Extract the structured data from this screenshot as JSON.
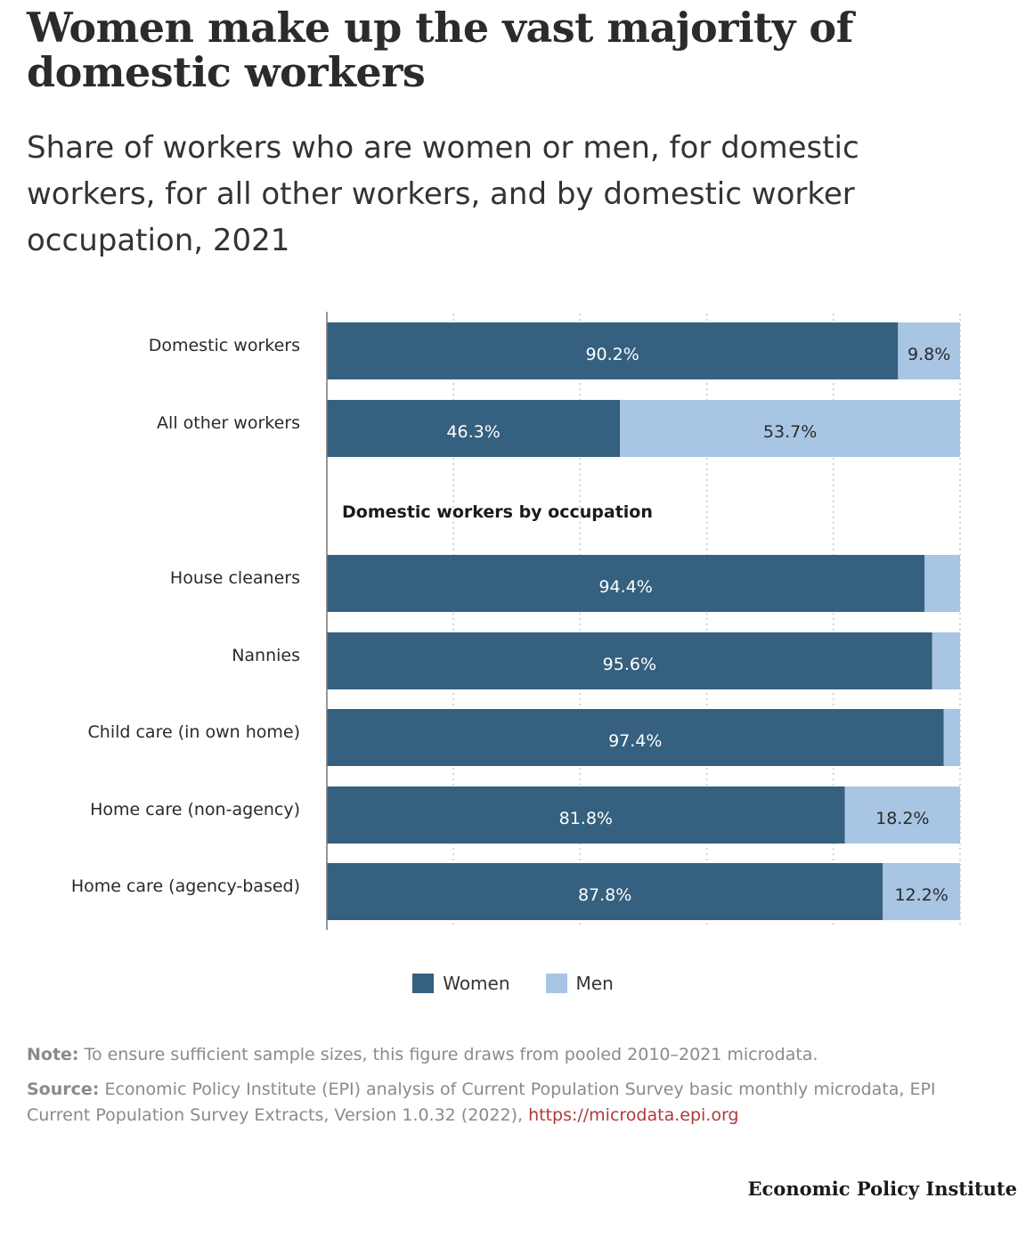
{
  "header": {
    "title": "Women make up the vast majority of domestic workers",
    "subtitle": "Share of workers who are women or men, for domestic workers, for all other workers, and by domestic worker occupation, 2021"
  },
  "chart_data": {
    "type": "bar",
    "orientation": "horizontal",
    "stacked": true,
    "xlim": [
      0,
      100
    ],
    "grid": true,
    "legend_position": "bottom",
    "categories": [
      "Domestic workers",
      "All other workers",
      "House cleaners",
      "Nannies",
      "Child care (in own home)",
      "Home care (non-agency)",
      "Home care (agency-based)"
    ],
    "section_label": "Domestic workers by occupation",
    "series": [
      {
        "name": "Women",
        "color": "#35607f",
        "values": [
          90.2,
          46.3,
          94.4,
          95.6,
          97.4,
          81.8,
          87.8
        ],
        "labels": [
          "90.2%",
          "46.3%",
          "94.4%",
          "95.6%",
          "97.4%",
          "81.8%",
          "87.8%"
        ]
      },
      {
        "name": "Men",
        "color": "#a8c5e3",
        "values": [
          9.8,
          53.7,
          5.6,
          4.4,
          2.6,
          18.2,
          12.2
        ],
        "labels": [
          "9.8%",
          "53.7%",
          "",
          "",
          "",
          "18.2%",
          "12.2%"
        ]
      }
    ]
  },
  "legend": {
    "women_label": "Women",
    "men_label": "Men"
  },
  "footer": {
    "note_label": "Note:",
    "note_text": "To ensure sufficient sample sizes, this figure draws from pooled 2010–2021 microdata.",
    "source_label": "Source:",
    "source_text": "Economic Policy Institute (EPI) analysis of Current Population Survey basic monthly microdata, EPI Current Population Survey Extracts, Version 1.0.32 (2022), ",
    "source_link": "https://microdata.epi.org",
    "brand": "Economic Policy Institute"
  }
}
